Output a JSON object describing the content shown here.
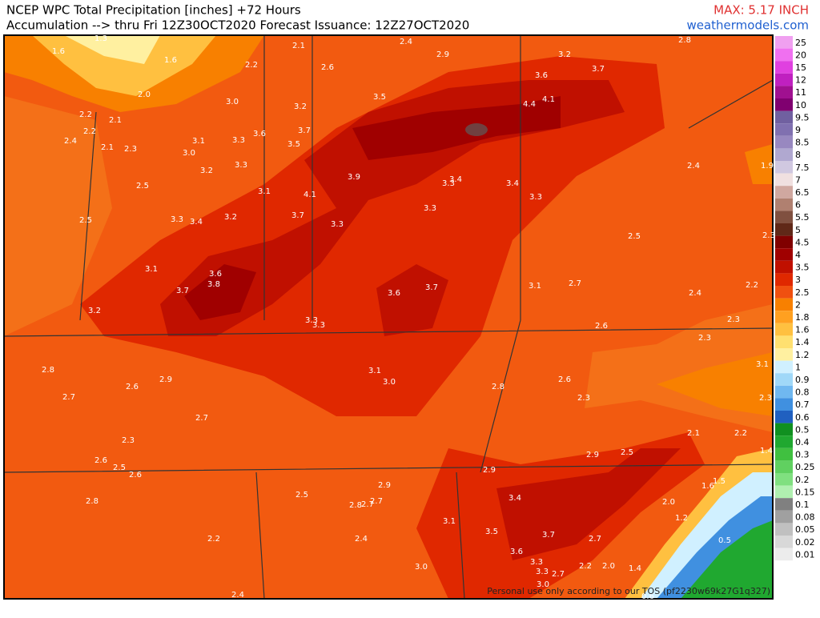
{
  "header": {
    "title": "NCEP WPC Total Precipitation [inches] +72 Hours",
    "subtitle": "Accumulation --> thru Fri 12Z30OCT2020   Forecast Issuance: 12Z27OCT2020",
    "max": "MAX: 5.17 INCH",
    "site": "weathermodels.com"
  },
  "legend": {
    "items": [
      {
        "label": "25",
        "color": "#f0a0f0"
      },
      {
        "label": "20",
        "color": "#f070f0"
      },
      {
        "label": "15",
        "color": "#e040e0"
      },
      {
        "label": "12",
        "color": "#c020c0"
      },
      {
        "label": "11",
        "color": "#a01090"
      },
      {
        "label": "10",
        "color": "#800070"
      },
      {
        "label": "9.5",
        "color": "#7060a0"
      },
      {
        "label": "9",
        "color": "#8070b0"
      },
      {
        "label": "8.5",
        "color": "#9888c0"
      },
      {
        "label": "8",
        "color": "#b0a8d0"
      },
      {
        "label": "7.5",
        "color": "#d0c8e0"
      },
      {
        "label": "7",
        "color": "#f0e0e0"
      },
      {
        "label": "6.5",
        "color": "#d0a8a0"
      },
      {
        "label": "6",
        "color": "#b08070"
      },
      {
        "label": "5.5",
        "color": "#805040"
      },
      {
        "label": "5",
        "color": "#602818"
      },
      {
        "label": "4.5",
        "color": "#800000"
      },
      {
        "label": "4",
        "color": "#a00000"
      },
      {
        "label": "3.5",
        "color": "#c01000"
      },
      {
        "label": "3",
        "color": "#e02800"
      },
      {
        "label": "2.5",
        "color": "#f05010"
      },
      {
        "label": "2",
        "color": "#f88000"
      },
      {
        "label": "1.8",
        "color": "#ffa020"
      },
      {
        "label": "1.6",
        "color": "#ffc040"
      },
      {
        "label": "1.4",
        "color": "#ffe070"
      },
      {
        "label": "1.2",
        "color": "#fff0a0"
      },
      {
        "label": "1",
        "color": "#d0f0ff"
      },
      {
        "label": "0.9",
        "color": "#a0d8f8"
      },
      {
        "label": "0.8",
        "color": "#70b8f0"
      },
      {
        "label": "0.7",
        "color": "#4090e0"
      },
      {
        "label": "0.6",
        "color": "#2060c0"
      },
      {
        "label": "0.5",
        "color": "#109020"
      },
      {
        "label": "0.4",
        "color": "#20a830"
      },
      {
        "label": "0.3",
        "color": "#40c040"
      },
      {
        "label": "0.25",
        "color": "#60d060"
      },
      {
        "label": "0.2",
        "color": "#80e080"
      },
      {
        "label": "0.15",
        "color": "#b0f0b0"
      },
      {
        "label": "0.1",
        "color": "#808080"
      },
      {
        "label": "0.08",
        "color": "#a0a0a0"
      },
      {
        "label": "0.05",
        "color": "#c0c0c0"
      },
      {
        "label": "0.02",
        "color": "#d8d8d8"
      },
      {
        "label": "0.01",
        "color": "#ececec"
      }
    ]
  },
  "map": {
    "labels": [
      "1.3",
      "1.6",
      "1.6",
      "2.1",
      "2.4",
      "2.9",
      "2.8",
      "3.2",
      "2.2",
      "2.6",
      "3.6",
      "3.7",
      "2.0",
      "3.5",
      "4.4",
      "4.1",
      "3.0",
      "3.2",
      "2.2",
      "2.1",
      "2.2",
      "2.4",
      "3.7",
      "3.6",
      "3.1",
      "3.3",
      "3.5",
      "2.1",
      "2.3",
      "3.0",
      "3.3",
      "3.2",
      "2.4",
      "1.9",
      "3.9",
      "3.3",
      "3.4",
      "3.4",
      "2.5",
      "3.1",
      "4.1",
      "3.3",
      "3.3",
      "2.5",
      "3.3",
      "3.4",
      "3.2",
      "3.7",
      "3.3",
      "2.5",
      "2.3",
      "3.1",
      "3.6",
      "3.8",
      "3.1",
      "2.7",
      "2.2",
      "3.7",
      "3.6",
      "3.7",
      "2.4",
      "3.2",
      "3.3",
      "3.3",
      "2.6",
      "2.3",
      "2.3",
      "3.1",
      "2.8",
      "3.1",
      "3.0",
      "2.9",
      "2.6",
      "2.6",
      "2.7",
      "2.8",
      "2.3",
      "2.3",
      "2.7",
      "2.1",
      "2.2",
      "2.3",
      "2.9",
      "2.5",
      "1.4",
      "2.6",
      "2.5",
      "2.6",
      "2.9",
      "1.5",
      "1.6",
      "2.5",
      "2.9",
      "2.8",
      "2.7",
      "2.7",
      "3.4",
      "2.0",
      "2.8",
      "1.2",
      "3.1",
      "3.5",
      "3.7",
      "2.7",
      "2.2",
      "2.4",
      "0.5",
      "3.6",
      "3.3",
      "3.0",
      "3.3",
      "2.7",
      "2.2",
      "2.0",
      "1.4",
      "3.0",
      "2.4",
      "0.6"
    ],
    "note": "Personal use only according to our TOS (pf2230w69k27G1q327)"
  }
}
